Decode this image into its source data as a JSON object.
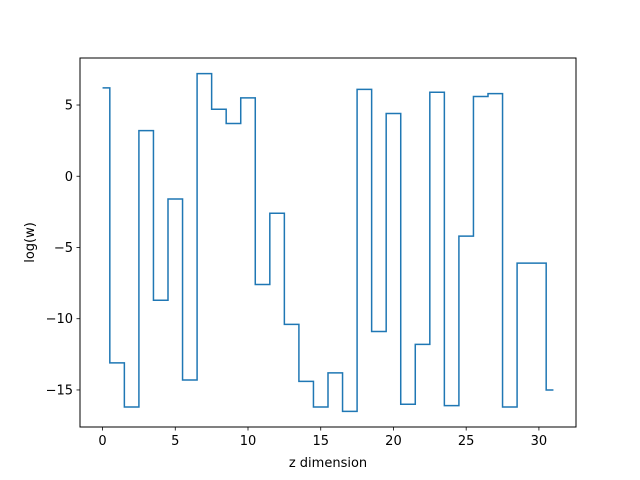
{
  "chart_data": {
    "type": "line",
    "step": "mid",
    "title": "",
    "xlabel": "z dimension",
    "ylabel": "log(w)",
    "xlim": [
      -1.55,
      32.55
    ],
    "ylim": [
      -17.6,
      8.3
    ],
    "xticks": [
      0,
      5,
      10,
      15,
      20,
      25,
      30
    ],
    "yticks": [
      -15,
      -10,
      -5,
      0,
      5
    ],
    "ytick_labels": [
      "−15",
      "−10",
      "−5",
      "0",
      "5"
    ],
    "grid": false,
    "series": [
      {
        "color": "#1f77b4",
        "x": [
          0,
          1,
          2,
          3,
          4,
          5,
          6,
          7,
          8,
          9,
          10,
          11,
          12,
          13,
          14,
          15,
          16,
          17,
          18,
          19,
          20,
          21,
          22,
          23,
          24,
          25,
          26,
          27,
          28,
          29,
          30,
          31
        ],
        "values": [
          6.2,
          -13.1,
          -16.2,
          3.2,
          -8.7,
          -1.6,
          -14.3,
          7.2,
          4.7,
          3.7,
          5.5,
          -7.6,
          -2.6,
          -10.4,
          -14.4,
          -16.2,
          -13.8,
          -16.5,
          6.1,
          -10.9,
          4.4,
          -16.0,
          -11.8,
          5.9,
          -16.1,
          -4.2,
          5.6,
          5.8,
          -16.2,
          -6.1,
          -6.1,
          -15.0
        ]
      }
    ]
  }
}
